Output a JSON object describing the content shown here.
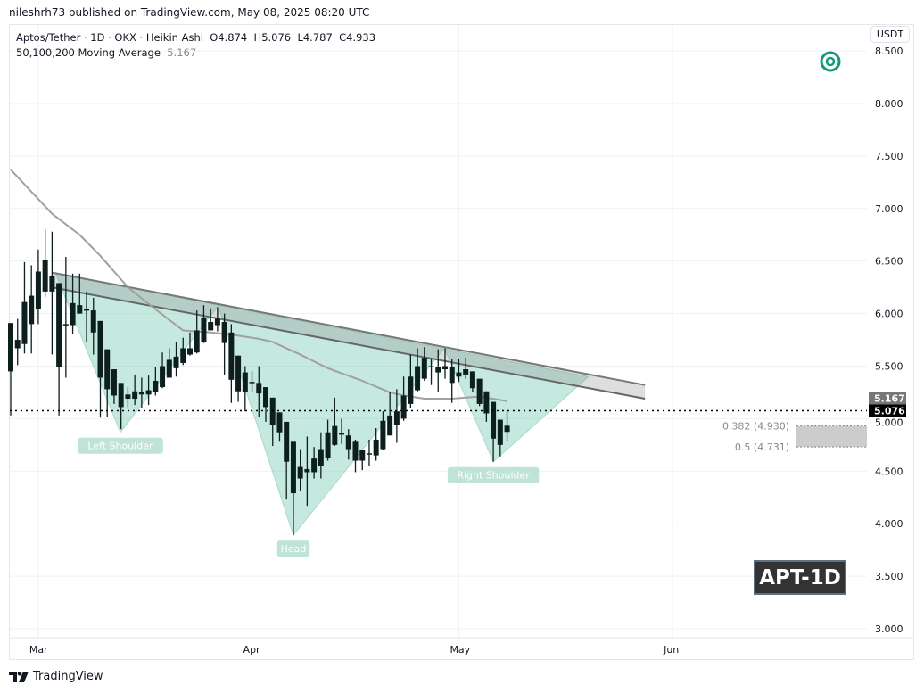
{
  "publisher": "nileshrh73 published on TradingView.com, May 08, 2025 08:20 UTC",
  "legend": {
    "symbol_line": "Aptos/Tether · 1D · OKX · Heikin Ashi",
    "open": "O4.874",
    "high": "H5.076",
    "low": "L4.787",
    "close": "C4.933",
    "ma_label": "50,100,200 Moving Average",
    "ma_value": "5.167"
  },
  "currency_button": "USDT",
  "badge": "APT-1D",
  "logo_text": "TradingView",
  "colors": {
    "candle": "#0d1f1c",
    "pattern_fill": "#7fcdb8",
    "channel_fill": "#8f9191",
    "ma_line": "#a0a0a0",
    "target_icon": "#149a78",
    "last_price_bg": "#000000",
    "ma_price_bg": "#777777"
  },
  "icons": {
    "target": "target-icon",
    "logo": "tradingview-logo-icon"
  },
  "chart_data": {
    "type": "candlestick",
    "chart_style": "Heikin Ashi",
    "interval": "1D",
    "y_axis": {
      "ticks": [
        "3.000",
        "3.500",
        "4.000",
        "4.500",
        "5.000",
        "5.500",
        "6.000",
        "6.500",
        "7.000",
        "7.500",
        "8.000",
        "8.500"
      ],
      "ylim": [
        3.0,
        8.55
      ],
      "unit": "USDT"
    },
    "x_axis": {
      "ticks": [
        "Mar",
        "Apr",
        "May",
        "Jun"
      ],
      "range": "late Feb 2025 – early Jun 2025"
    },
    "grid": true,
    "candles_ohlc": [
      [
        5.45,
        5.91,
        5.03,
        5.91
      ],
      [
        5.67,
        5.95,
        5.51,
        5.75
      ],
      [
        5.71,
        6.49,
        5.62,
        6.11
      ],
      [
        5.9,
        6.46,
        5.62,
        6.17
      ],
      [
        6.04,
        6.61,
        5.9,
        6.4
      ],
      [
        6.21,
        6.8,
        6.16,
        6.51
      ],
      [
        6.36,
        6.78,
        5.61,
        6.21
      ],
      [
        6.29,
        6.29,
        5.03,
        5.49
      ],
      [
        5.9,
        6.54,
        5.39,
        5.89
      ],
      [
        6.1,
        6.38,
        5.81,
        5.89
      ],
      [
        6.08,
        6.38,
        6.0,
        6.0
      ],
      [
        6.04,
        6.21,
        5.73,
        6.03
      ],
      [
        6.03,
        6.15,
        5.61,
        5.82
      ],
      [
        5.93,
        5.93,
        5.01,
        5.39
      ],
      [
        5.66,
        5.66,
        5.02,
        5.28
      ],
      [
        5.47,
        5.47,
        5.14,
        5.22
      ],
      [
        5.34,
        5.34,
        4.9,
        5.11
      ],
      [
        5.23,
        5.3,
        5.11,
        5.19
      ],
      [
        5.19,
        5.42,
        5.13,
        5.26
      ],
      [
        5.23,
        5.39,
        5.1,
        5.25
      ],
      [
        5.23,
        5.41,
        5.13,
        5.27
      ],
      [
        5.25,
        5.49,
        5.22,
        5.36
      ],
      [
        5.3,
        5.63,
        5.29,
        5.5
      ],
      [
        5.39,
        5.67,
        5.39,
        5.56
      ],
      [
        5.48,
        5.73,
        5.4,
        5.59
      ],
      [
        5.53,
        5.77,
        5.51,
        5.67
      ],
      [
        5.61,
        5.82,
        5.6,
        5.67
      ],
      [
        5.63,
        6.03,
        5.62,
        5.84
      ],
      [
        5.73,
        6.08,
        5.72,
        5.96
      ],
      [
        5.92,
        6.05,
        5.84,
        5.84
      ],
      [
        5.89,
        6.06,
        5.83,
        5.95
      ],
      [
        5.92,
        6.0,
        5.42,
        5.72
      ],
      [
        5.82,
        5.9,
        5.15,
        5.37
      ],
      [
        5.6,
        5.6,
        5.16,
        5.26
      ],
      [
        5.44,
        5.5,
        5.07,
        5.25
      ],
      [
        5.35,
        5.45,
        5.25,
        5.34
      ],
      [
        5.34,
        5.5,
        5.02,
        5.24
      ],
      [
        5.3,
        5.3,
        4.97,
        5.11
      ],
      [
        5.2,
        5.2,
        4.74,
        4.94
      ],
      [
        5.06,
        5.06,
        4.78,
        4.87
      ],
      [
        4.97,
        4.97,
        4.23,
        4.59
      ],
      [
        4.78,
        4.78,
        3.89,
        4.29
      ],
      [
        4.43,
        4.71,
        4.31,
        4.54
      ],
      [
        4.49,
        4.83,
        4.17,
        4.52
      ],
      [
        4.49,
        4.73,
        4.43,
        4.62
      ],
      [
        4.55,
        4.87,
        4.43,
        4.71
      ],
      [
        4.63,
        4.99,
        4.6,
        4.87
      ],
      [
        4.75,
        5.2,
        4.74,
        4.93
      ],
      [
        4.86,
        5.0,
        4.76,
        4.85
      ],
      [
        4.84,
        4.9,
        4.61,
        4.71
      ],
      [
        4.78,
        4.8,
        4.49,
        4.6
      ],
      [
        4.6,
        4.7,
        4.51,
        4.7
      ],
      [
        4.66,
        4.8,
        4.55,
        4.67
      ],
      [
        4.65,
        4.91,
        4.6,
        4.8
      ],
      [
        4.71,
        5.07,
        4.7,
        4.98
      ],
      [
        4.84,
        5.25,
        4.84,
        5.03
      ],
      [
        4.94,
        5.28,
        4.77,
        5.07
      ],
      [
        5.0,
        5.4,
        4.98,
        5.22
      ],
      [
        5.14,
        5.61,
        5.1,
        5.4
      ],
      [
        5.27,
        5.67,
        5.25,
        5.5
      ],
      [
        5.38,
        5.68,
        5.36,
        5.58
      ],
      [
        5.5,
        5.57,
        5.32,
        5.49
      ],
      [
        5.49,
        5.66,
        5.25,
        5.44
      ],
      [
        5.47,
        5.67,
        5.38,
        5.5
      ],
      [
        5.49,
        5.57,
        5.15,
        5.34
      ],
      [
        5.4,
        5.57,
        5.35,
        5.44
      ],
      [
        5.42,
        5.58,
        5.38,
        5.47
      ],
      [
        5.45,
        5.45,
        5.25,
        5.29
      ],
      [
        5.38,
        5.38,
        5.12,
        5.14
      ],
      [
        5.26,
        5.26,
        4.97,
        5.05
      ],
      [
        5.16,
        5.16,
        4.59,
        4.81
      ],
      [
        4.99,
        4.99,
        4.64,
        4.75
      ],
      [
        4.874,
        5.076,
        4.787,
        4.933
      ]
    ],
    "moving_average": [
      [
        0,
        7.37
      ],
      [
        6,
        6.95
      ],
      [
        10,
        6.75
      ],
      [
        13,
        6.55
      ],
      [
        17,
        6.25
      ],
      [
        21,
        6.04
      ],
      [
        25,
        5.84
      ],
      [
        29,
        5.82
      ],
      [
        32,
        5.8
      ],
      [
        36,
        5.76
      ],
      [
        38,
        5.73
      ],
      [
        42,
        5.61
      ],
      [
        46,
        5.48
      ],
      [
        51,
        5.36
      ],
      [
        55,
        5.25
      ],
      [
        57,
        5.22
      ],
      [
        60,
        5.19
      ],
      [
        64,
        5.19
      ],
      [
        68,
        5.21
      ],
      [
        72,
        5.167
      ]
    ],
    "resistance_channel": {
      "start": [
        6,
        6.39,
        6.25
      ],
      "end": [
        92,
        5.32,
        5.19
      ]
    },
    "pattern": {
      "name": "inverse head and shoulders",
      "vertices": [
        [
          6.5,
          6.38
        ],
        [
          15.9,
          4.87
        ],
        [
          30.1,
          6.07
        ],
        [
          41,
          3.89
        ],
        [
          62.9,
          5.67
        ],
        [
          70,
          4.59
        ],
        [
          83.8,
          5.4
        ]
      ],
      "labels": [
        {
          "text": "Left Shoulder",
          "at": [
            15.9,
            4.87
          ]
        },
        {
          "text": "Head",
          "at": [
            41,
            3.89
          ]
        },
        {
          "text": "Right Shoulder",
          "at": [
            70,
            4.59
          ]
        }
      ]
    },
    "fibonacci": [
      {
        "label": "0.382 (4.930)",
        "value": 4.93
      },
      {
        "label": "0.5 (4.731)",
        "value": 4.731
      }
    ],
    "last_price": {
      "value": 5.076,
      "label": "5.076"
    },
    "ma_price": {
      "value": 5.167,
      "label": "5.167"
    }
  }
}
